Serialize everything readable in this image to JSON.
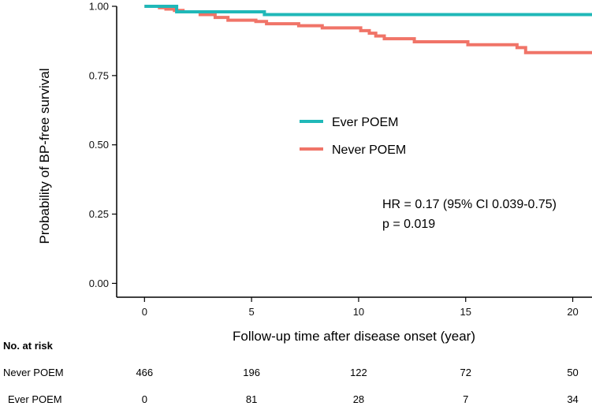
{
  "chart_data": {
    "type": "line",
    "subtype": "kaplan-meier",
    "xlabel": "Follow-up time after disease onset (year)",
    "ylabel": "Probability of BP-free survival",
    "xlim": [
      -1.3,
      20.9
    ],
    "ylim": [
      -0.05,
      1.0
    ],
    "xticks": [
      0,
      5,
      10,
      15,
      20
    ],
    "xtick_labels": [
      "0",
      "5",
      "10",
      "15",
      "20"
    ],
    "yticks": [
      0.0,
      0.25,
      0.5,
      0.75,
      1.0
    ],
    "ytick_labels": [
      "0.00",
      "0.25",
      "0.50",
      "0.75",
      "1.00"
    ],
    "series": [
      {
        "name": "Ever POEM",
        "color": "#20b8b8",
        "points": [
          [
            0,
            1.0
          ],
          [
            1.5,
            1.0
          ],
          [
            1.5,
            0.98
          ],
          [
            5.6,
            0.98
          ],
          [
            5.6,
            0.97
          ],
          [
            20.9,
            0.97
          ]
        ]
      },
      {
        "name": "Never POEM",
        "color": "#f07468",
        "points": [
          [
            0,
            1.0
          ],
          [
            0.7,
            1.0
          ],
          [
            0.7,
            0.995
          ],
          [
            1.0,
            0.995
          ],
          [
            1.0,
            0.99
          ],
          [
            1.4,
            0.99
          ],
          [
            1.4,
            0.985
          ],
          [
            1.8,
            0.985
          ],
          [
            1.8,
            0.98
          ],
          [
            2.6,
            0.98
          ],
          [
            2.6,
            0.97
          ],
          [
            3.3,
            0.97
          ],
          [
            3.3,
            0.96
          ],
          [
            3.9,
            0.96
          ],
          [
            3.9,
            0.95
          ],
          [
            5.2,
            0.95
          ],
          [
            5.2,
            0.945
          ],
          [
            5.7,
            0.945
          ],
          [
            5.7,
            0.937
          ],
          [
            7.2,
            0.937
          ],
          [
            7.2,
            0.93
          ],
          [
            8.3,
            0.93
          ],
          [
            8.3,
            0.922
          ],
          [
            10.1,
            0.922
          ],
          [
            10.1,
            0.912
          ],
          [
            10.5,
            0.912
          ],
          [
            10.5,
            0.903
          ],
          [
            10.8,
            0.903
          ],
          [
            10.8,
            0.893
          ],
          [
            11.2,
            0.893
          ],
          [
            11.2,
            0.883
          ],
          [
            12.6,
            0.883
          ],
          [
            12.6,
            0.872
          ],
          [
            15.1,
            0.872
          ],
          [
            15.1,
            0.861
          ],
          [
            17.4,
            0.861
          ],
          [
            17.4,
            0.851
          ],
          [
            17.8,
            0.851
          ],
          [
            17.8,
            0.833
          ],
          [
            20.9,
            0.833
          ]
        ]
      }
    ],
    "legend": {
      "position": "center",
      "entries": [
        "Ever POEM",
        "Never POEM"
      ]
    },
    "annotations": [
      "HR = 0.17 (95% CI 0.039-0.75)",
      "p = 0.019"
    ],
    "risk_table": {
      "title": "No. at risk",
      "times": [
        0,
        5,
        10,
        15,
        20
      ],
      "rows": [
        {
          "label": "Never POEM",
          "values": [
            "466",
            "196",
            "122",
            "72",
            "50"
          ]
        },
        {
          "label": "Ever POEM",
          "values": [
            "0",
            "81",
            "28",
            "7",
            "34"
          ]
        }
      ]
    }
  }
}
